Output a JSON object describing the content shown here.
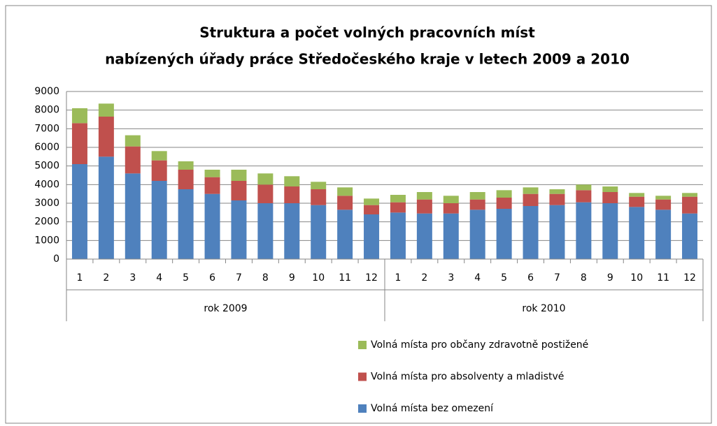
{
  "chart_data": {
    "type": "stacked_bar",
    "title": [
      "Struktura a počet volných pracovních míst",
      "nabízených úřady práce Středočeského kraje v letech 2009 a 2010"
    ],
    "groups": [
      {
        "label": "rok 2009",
        "categories": [
          "1",
          "2",
          "3",
          "4",
          "5",
          "6",
          "7",
          "8",
          "9",
          "10",
          "11",
          "12"
        ]
      },
      {
        "label": "rok 2010",
        "categories": [
          "1",
          "2",
          "3",
          "4",
          "5",
          "6",
          "7",
          "8",
          "9",
          "10",
          "11",
          "12"
        ]
      }
    ],
    "series": [
      {
        "name": "Volná místa bez omezení",
        "color": "#4f81bd",
        "values": [
          5100,
          5500,
          4600,
          4200,
          3750,
          3500,
          3150,
          3000,
          3000,
          2900,
          2650,
          2400,
          2500,
          2450,
          2450,
          2650,
          2700,
          2850,
          2900,
          3050,
          3000,
          2800,
          2650,
          2450
        ]
      },
      {
        "name": "Volná místa pro absolventy a mladistvé",
        "color": "#c0504d",
        "values": [
          2200,
          2150,
          1450,
          1100,
          1050,
          900,
          1050,
          1000,
          900,
          850,
          750,
          500,
          550,
          750,
          550,
          550,
          600,
          650,
          600,
          650,
          600,
          550,
          550,
          900
        ]
      },
      {
        "name": "Volná místa pro občany zdravotně postižené",
        "color": "#9bbb59",
        "values": [
          800,
          700,
          600,
          500,
          450,
          400,
          600,
          600,
          550,
          400,
          450,
          350,
          400,
          400,
          400,
          400,
          400,
          350,
          250,
          300,
          300,
          200,
          200,
          200
        ]
      }
    ],
    "ylim": [
      0,
      9000
    ],
    "yticks": [
      0,
      1000,
      2000,
      3000,
      4000,
      5000,
      6000,
      7000,
      8000,
      9000
    ],
    "grid": true,
    "legend": "bottom-right"
  }
}
